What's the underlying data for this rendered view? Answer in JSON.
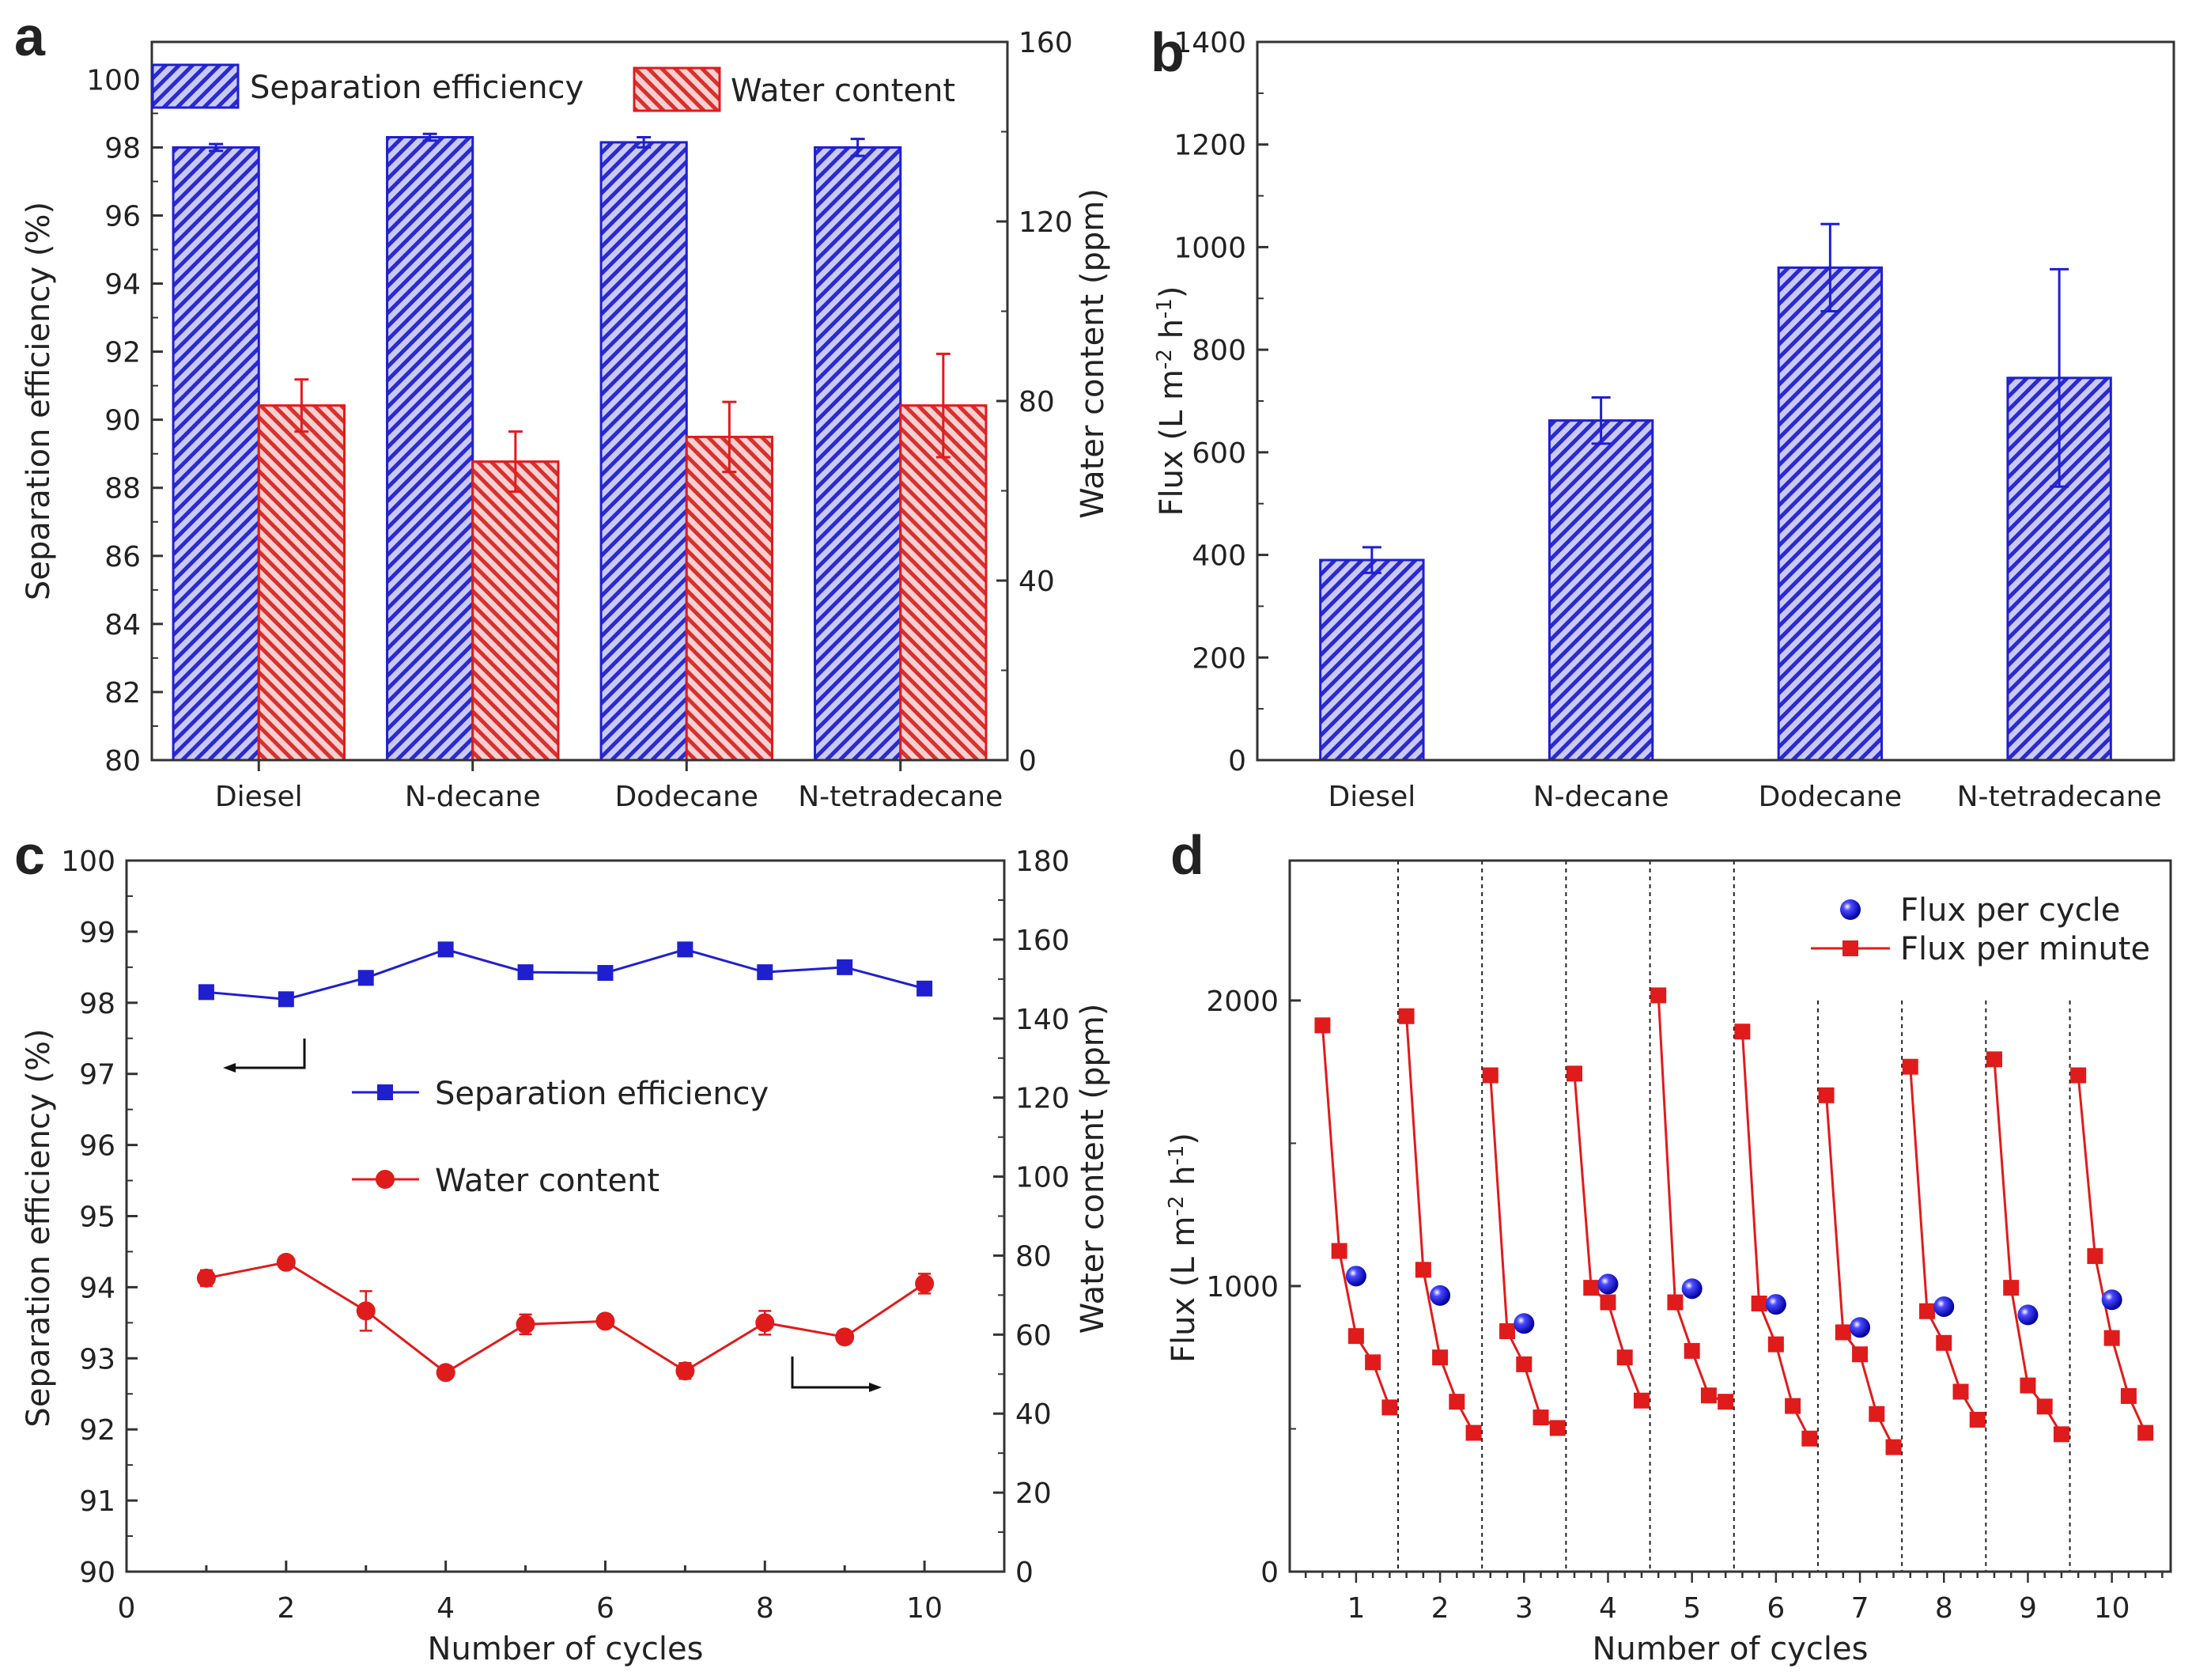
{
  "colors": {
    "blue": "#1f1fd0",
    "red": "#e01b1b",
    "blue_fill": "#8a8ae6",
    "red_fill": "#f0a0a0"
  },
  "chart_data": [
    {
      "panel": "a",
      "type": "bar",
      "categories": [
        "Diesel",
        "N-decane",
        "Dodecane",
        "N-tetradecane"
      ],
      "ylabel": "Separation efficiency (%)",
      "y2label": "Water content (ppm)",
      "ylim": [
        80,
        101.1
      ],
      "y2lim": [
        0,
        160
      ],
      "yticks": [
        80,
        82,
        84,
        86,
        88,
        90,
        92,
        94,
        96,
        98,
        100
      ],
      "y2ticks": [
        0,
        40,
        80,
        120,
        160
      ],
      "legend": "top",
      "series": [
        {
          "name": "Separation efficiency",
          "axis": "left",
          "values": [
            98.0,
            98.3,
            98.15,
            98.0
          ],
          "errors": [
            0.1,
            0.1,
            0.15,
            0.25
          ]
        },
        {
          "name": "Water content",
          "axis": "right",
          "values": [
            79,
            66.5,
            72,
            79
          ],
          "errors": [
            5.8,
            6.7,
            7.8,
            11.5
          ]
        }
      ]
    },
    {
      "panel": "b",
      "type": "bar",
      "categories": [
        "Diesel",
        "N-decane",
        "Dodecane",
        "N-tetradecane"
      ],
      "ylabel": "Flux (L m-2 h-1)",
      "ylim": [
        0,
        1400
      ],
      "yticks": [
        0,
        200,
        400,
        600,
        800,
        1000,
        1200,
        1400
      ],
      "series": [
        {
          "values": [
            390,
            662,
            960,
            745
          ],
          "errors": [
            25,
            45,
            85,
            212
          ]
        }
      ]
    },
    {
      "panel": "c",
      "type": "line",
      "xlabel": "Number of cycles",
      "ylabel": "Separation efficiency (%)",
      "y2label": "Water content (ppm)",
      "xlim": [
        0,
        11
      ],
      "xticks": [
        0,
        2,
        4,
        6,
        8,
        10
      ],
      "ylim": [
        90,
        100
      ],
      "yticks": [
        90,
        91,
        92,
        93,
        94,
        95,
        96,
        97,
        98,
        99,
        100
      ],
      "y2lim": [
        0,
        180
      ],
      "y2ticks": [
        0,
        20,
        40,
        60,
        80,
        100,
        120,
        140,
        160,
        180
      ],
      "x": [
        1,
        2,
        3,
        4,
        5,
        6,
        7,
        8,
        9,
        10
      ],
      "series": [
        {
          "name": "Separation efficiency",
          "axis": "left",
          "marker": "square",
          "values": [
            98.15,
            98.05,
            98.35,
            98.75,
            98.43,
            98.42,
            98.75,
            98.43,
            98.5,
            98.2
          ]
        },
        {
          "name": "Water content",
          "axis": "right",
          "marker": "circle",
          "values": [
            74.3,
            78.3,
            66,
            50.4,
            62.6,
            63.4,
            50.8,
            63,
            59.4,
            72.9
          ],
          "errors": [
            2,
            1.5,
            5,
            1,
            2.5,
            1,
            2,
            3,
            1,
            2.5
          ]
        }
      ]
    },
    {
      "panel": "d",
      "type": "scatter",
      "xlabel": "Number of cycles",
      "ylabel": "Flux (L m-2 h-1)",
      "xlim": [
        0.21,
        10.7
      ],
      "xticks": [
        1,
        2,
        3,
        4,
        5,
        6,
        7,
        8,
        9,
        10
      ],
      "ylim": [
        0,
        2490
      ],
      "yticks": [
        0,
        1000,
        2000
      ],
      "separators": [
        1.5,
        2.5,
        3.5,
        4.5,
        5.5,
        6.5,
        7.5,
        8.5,
        9.5
      ],
      "legend": "top-right",
      "series": [
        {
          "name": "Flux per cycle",
          "marker": "sphere",
          "x": [
            1,
            2,
            3,
            4,
            5,
            6,
            7,
            8,
            9,
            10
          ],
          "values": [
            1035,
            967,
            869,
            1007,
            991,
            936,
            855,
            928,
            899,
            952
          ]
        },
        {
          "name": "Flux per minute",
          "marker": "square",
          "offsets": [
            -0.4,
            -0.2,
            0,
            0.2,
            0.4
          ],
          "cycles": [
            [
              1913,
              1123,
              825,
              733,
              575
            ],
            [
              1945,
              1057,
              750,
              595,
              486
            ],
            [
              1738,
              842,
              726,
              540,
              503
            ],
            [
              1744,
              994,
              943,
              750,
              599
            ],
            [
              2018,
              943,
              773,
              617,
              595
            ],
            [
              1891,
              939,
              796,
              580,
              466
            ],
            [
              1668,
              838,
              761,
              552,
              436
            ],
            [
              1768,
              912,
              801,
              630,
              532
            ],
            [
              1794,
              994,
              652,
              578,
              481
            ],
            [
              1738,
              1105,
              818,
              615,
              486
            ]
          ]
        }
      ]
    }
  ],
  "panel_labels": [
    "a",
    "b",
    "c",
    "d"
  ],
  "annotations": {
    "flux_unit_sup": "-2",
    "flux_unit_sup2": "-1"
  }
}
